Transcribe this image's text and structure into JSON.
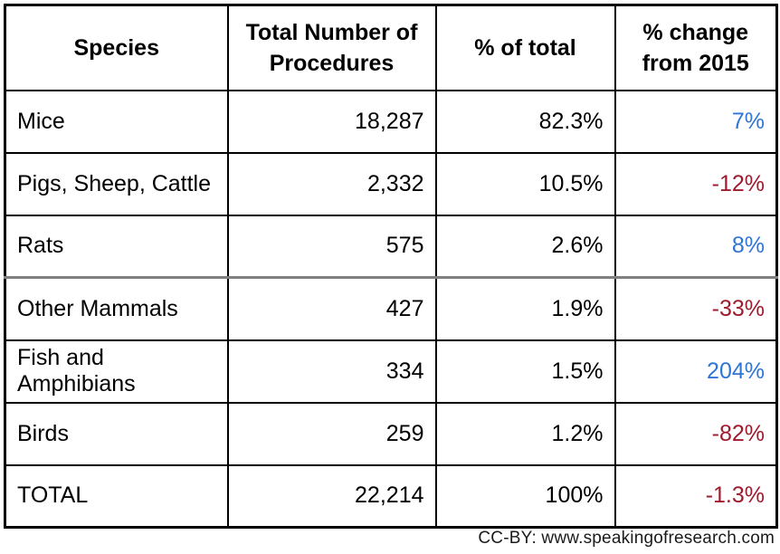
{
  "colors": {
    "positive_change": "#2E75D6",
    "negative_change": "#9E1B2D",
    "text": "#000000",
    "border": "#000000",
    "gray_divider": "#808080"
  },
  "table": {
    "headers": [
      "Species",
      "Total Number of Procedures",
      "% of total",
      "% change from 2015"
    ],
    "rows": [
      {
        "species": "Mice",
        "total_procedures": "18,287",
        "pct_of_total": "82.3%",
        "pct_change_from_2015": "7%",
        "change_direction": "positive"
      },
      {
        "species": "Pigs, Sheep, Cattle",
        "total_procedures": "2,332",
        "pct_of_total": "10.5%",
        "pct_change_from_2015": "-12%",
        "change_direction": "negative"
      },
      {
        "species": "Rats",
        "total_procedures": "575",
        "pct_of_total": "2.6%",
        "pct_change_from_2015": "8%",
        "change_direction": "positive"
      },
      {
        "species": "Other Mammals",
        "total_procedures": "427",
        "pct_of_total": "1.9%",
        "pct_change_from_2015": "-33%",
        "change_direction": "negative"
      },
      {
        "species": "Fish and Amphibians",
        "total_procedures": "334",
        "pct_of_total": "1.5%",
        "pct_change_from_2015": "204%",
        "change_direction": "positive"
      },
      {
        "species": "Birds",
        "total_procedures": "259",
        "pct_of_total": "1.2%",
        "pct_change_from_2015": "-82%",
        "change_direction": "negative"
      },
      {
        "species": "TOTAL",
        "total_procedures": "22,214",
        "pct_of_total": "100%",
        "pct_change_from_2015": "-1.3%",
        "change_direction": "negative"
      }
    ]
  },
  "footer": {
    "attribution": "CC-BY: www.speakingofresearch.com"
  },
  "chart_data": {
    "type": "table",
    "columns": [
      "Species",
      "Total Number of Procedures",
      "% of total",
      "% change from 2015"
    ],
    "rows": [
      [
        "Mice",
        18287,
        82.3,
        7
      ],
      [
        "Pigs, Sheep, Cattle",
        2332,
        10.5,
        -12
      ],
      [
        "Rats",
        575,
        2.6,
        8
      ],
      [
        "Other Mammals",
        427,
        1.9,
        -33
      ],
      [
        "Fish and Amphibians",
        334,
        1.5,
        204
      ],
      [
        "Birds",
        259,
        1.2,
        -82
      ],
      [
        "TOTAL",
        22214,
        100,
        -1.3
      ]
    ],
    "notes": "% change from 2015 values are rendered blue when positive and dark red when negative"
  }
}
